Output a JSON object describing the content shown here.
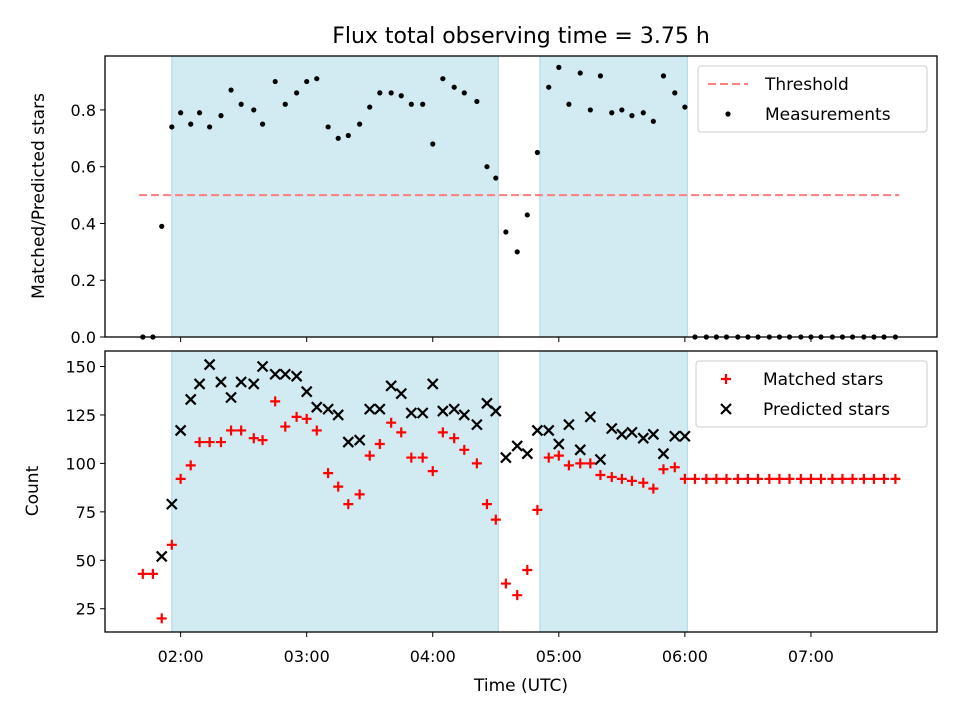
{
  "title": "Flux total observing time = 3.75 h",
  "colors": {
    "band": "#add8e6",
    "threshold": "#ff7f7f",
    "measurements": "#000000",
    "matched": "#ff0000",
    "predicted": "#000000"
  },
  "x_axis": {
    "label": "Time (UTC)",
    "ticks": [
      {
        "value": 2.0,
        "label": "02:00"
      },
      {
        "value": 3.0,
        "label": "03:00"
      },
      {
        "value": 4.0,
        "label": "04:00"
      },
      {
        "value": 5.0,
        "label": "05:00"
      },
      {
        "value": 6.0,
        "label": "06:00"
      },
      {
        "value": 7.0,
        "label": "07:00"
      }
    ],
    "range": [
      1.4,
      8.0
    ]
  },
  "chart_data": [
    {
      "type": "scatter",
      "ylabel": "Matched/Predicted stars",
      "ylim": [
        0.0,
        0.99
      ],
      "yticks": [
        0.0,
        0.2,
        0.4,
        0.6,
        0.8
      ],
      "ytick_labels": [
        "0.0",
        "0.2",
        "0.4",
        "0.6",
        "0.8"
      ],
      "bands": [
        [
          1.93,
          4.52
        ],
        [
          4.85,
          6.02
        ]
      ],
      "threshold": {
        "name": "Threshold",
        "y": 0.5,
        "x": [
          1.67,
          7.7
        ]
      },
      "legend_position": "upper right",
      "series": [
        {
          "name": "Measurements",
          "marker": "dot",
          "x": [
            1.7,
            1.78,
            1.85,
            1.93,
            2.0,
            2.08,
            2.15,
            2.23,
            2.32,
            2.4,
            2.48,
            2.58,
            2.65,
            2.75,
            2.83,
            2.92,
            3.0,
            3.08,
            3.17,
            3.25,
            3.33,
            3.42,
            3.5,
            3.58,
            3.67,
            3.75,
            3.83,
            3.92,
            4.0,
            4.08,
            4.17,
            4.25,
            4.35,
            4.43,
            4.5,
            4.58,
            4.67,
            4.75,
            4.83,
            4.92,
            5.0,
            5.08,
            5.17,
            5.25,
            5.33,
            5.42,
            5.5,
            5.58,
            5.67,
            5.75,
            5.83,
            5.92,
            6.0,
            6.08,
            6.17,
            6.25,
            6.33,
            6.42,
            6.5,
            6.58,
            6.67,
            6.75,
            6.83,
            6.92,
            7.0,
            7.08,
            7.17,
            7.25,
            7.33,
            7.42,
            7.5,
            7.58,
            7.67
          ],
          "y": [
            0.0,
            0.0,
            0.39,
            0.74,
            0.79,
            0.75,
            0.79,
            0.74,
            0.78,
            0.87,
            0.82,
            0.8,
            0.75,
            0.9,
            0.82,
            0.86,
            0.9,
            0.91,
            0.74,
            0.7,
            0.71,
            0.75,
            0.81,
            0.86,
            0.86,
            0.85,
            0.82,
            0.82,
            0.68,
            0.91,
            0.88,
            0.86,
            0.83,
            0.6,
            0.56,
            0.37,
            0.3,
            0.43,
            0.65,
            0.88,
            0.95,
            0.82,
            0.93,
            0.8,
            0.92,
            0.79,
            0.8,
            0.78,
            0.79,
            0.76,
            0.92,
            0.86,
            0.81,
            0.0,
            0.0,
            0.0,
            0.0,
            0.0,
            0.0,
            0.0,
            0.0,
            0.0,
            0.0,
            0.0,
            0.0,
            0.0,
            0.0,
            0.0,
            0.0,
            0.0,
            0.0,
            0.0,
            0.0
          ]
        }
      ]
    },
    {
      "type": "scatter",
      "ylabel": "Count",
      "xlabel": "Time (UTC)",
      "ylim": [
        13,
        158
      ],
      "yticks": [
        25,
        50,
        75,
        100,
        125,
        150
      ],
      "ytick_labels": [
        "25",
        "50",
        "75",
        "100",
        "125",
        "150"
      ],
      "bands": [
        [
          1.93,
          4.52
        ],
        [
          4.85,
          6.02
        ]
      ],
      "legend_position": "upper right",
      "series": [
        {
          "name": "Matched stars",
          "marker": "plus",
          "x": [
            1.7,
            1.78,
            1.85,
            1.93,
            2.0,
            2.08,
            2.15,
            2.23,
            2.32,
            2.4,
            2.48,
            2.58,
            2.65,
            2.75,
            2.83,
            2.92,
            3.0,
            3.08,
            3.17,
            3.25,
            3.33,
            3.42,
            3.5,
            3.58,
            3.67,
            3.75,
            3.83,
            3.92,
            4.0,
            4.08,
            4.17,
            4.25,
            4.35,
            4.43,
            4.5,
            4.58,
            4.67,
            4.75,
            4.83,
            4.92,
            5.0,
            5.08,
            5.17,
            5.25,
            5.33,
            5.42,
            5.5,
            5.58,
            5.67,
            5.75,
            5.83,
            5.92,
            6.0,
            6.08,
            6.17,
            6.25,
            6.33,
            6.42,
            6.5,
            6.58,
            6.67,
            6.75,
            6.83,
            6.92,
            7.0,
            7.08,
            7.17,
            7.25,
            7.33,
            7.42,
            7.5,
            7.58,
            7.67
          ],
          "y": [
            43,
            43,
            20,
            58,
            92,
            99,
            111,
            111,
            111,
            117,
            117,
            113,
            112,
            132,
            119,
            124,
            123,
            117,
            95,
            88,
            79,
            84,
            104,
            110,
            121,
            116,
            103,
            103,
            96,
            116,
            113,
            107,
            100,
            79,
            71,
            38,
            32,
            45,
            76,
            103,
            104,
            99,
            100,
            100,
            94,
            93,
            92,
            91,
            90,
            87,
            97,
            98,
            92,
            92,
            92,
            92,
            92,
            92,
            92,
            92,
            92,
            92,
            92,
            92,
            92,
            92,
            92,
            92,
            92,
            92,
            92,
            92,
            92
          ]
        },
        {
          "name": "Predicted stars",
          "marker": "cross",
          "x": [
            1.85,
            1.93,
            2.0,
            2.08,
            2.15,
            2.23,
            2.32,
            2.4,
            2.48,
            2.58,
            2.65,
            2.75,
            2.83,
            2.92,
            3.0,
            3.08,
            3.17,
            3.25,
            3.33,
            3.42,
            3.5,
            3.58,
            3.67,
            3.75,
            3.83,
            3.92,
            4.0,
            4.08,
            4.17,
            4.25,
            4.35,
            4.43,
            4.5,
            4.58,
            4.67,
            4.75,
            4.83,
            4.92,
            5.0,
            5.08,
            5.17,
            5.25,
            5.33,
            5.42,
            5.5,
            5.58,
            5.67,
            5.75,
            5.83,
            5.92,
            6.0
          ],
          "y": [
            52,
            79,
            117,
            133,
            141,
            151,
            142,
            134,
            142,
            141,
            150,
            146,
            146,
            145,
            137,
            129,
            128,
            125,
            111,
            112,
            128,
            128,
            140,
            136,
            126,
            126,
            141,
            127,
            128,
            125,
            120,
            131,
            127,
            103,
            109,
            105,
            117,
            117,
            110,
            120,
            107,
            124,
            102,
            118,
            115,
            116,
            113,
            115,
            105,
            114,
            114
          ]
        }
      ]
    }
  ]
}
